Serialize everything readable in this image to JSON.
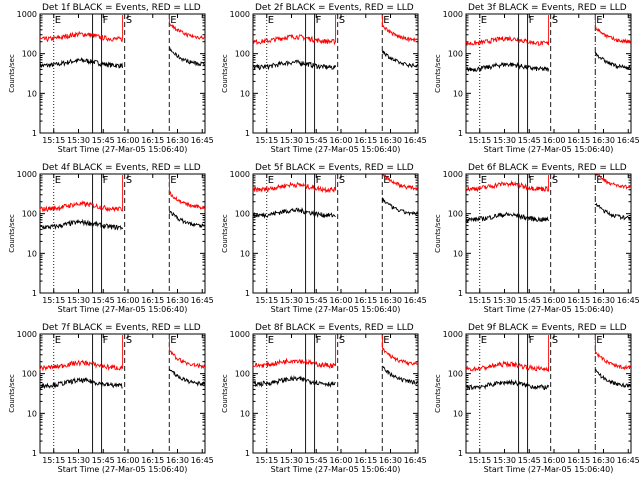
{
  "figure": {
    "x_ticks": [
      "15:15",
      "15:30",
      "15:45",
      "16:00",
      "16:15",
      "16:30",
      "16:45"
    ],
    "y_ticks": [
      "1",
      "10",
      "100",
      "1000"
    ],
    "xlabel": "Start Time (27-Mar-05 15:06:40)",
    "ylabel": "Counts/sec"
  },
  "chart_data": [
    {
      "type": "line",
      "title": "Det 1f BLACK = Events, RED = LLD",
      "xlabel": "Start Time (27-Mar-05 15:06:40)",
      "ylabel": "Counts/sec",
      "y_scale": "log",
      "ylim": [
        1,
        1000
      ],
      "x_ticks": [
        "15:15",
        "15:30",
        "15:45",
        "16:00",
        "16:15",
        "16:30",
        "16:45"
      ],
      "series": [
        {
          "name": "Events",
          "color": "#000000",
          "approx_level": 50
        },
        {
          "name": "LLD",
          "color": "#ff0000",
          "approx_level": 230
        }
      ],
      "markers": [
        {
          "label": "E",
          "time": "15:15",
          "style": "dotted"
        },
        {
          "label": "F",
          "time": "15:44",
          "style": "solid"
        },
        {
          "label": "S",
          "time": "15:58",
          "style": "dashed"
        },
        {
          "label": "E",
          "time": "16:25",
          "style": "dashed"
        }
      ]
    },
    {
      "type": "line",
      "title": "Det 2f BLACK = Events, RED = LLD",
      "xlabel": "Start Time (27-Mar-05 15:06:40)",
      "ylabel": "Counts/sec",
      "y_scale": "log",
      "ylim": [
        1,
        1000
      ],
      "x_ticks": [
        "15:15",
        "15:30",
        "15:45",
        "16:00",
        "16:15",
        "16:30",
        "16:45"
      ],
      "series": [
        {
          "name": "Events",
          "color": "#000000",
          "approx_level": 45
        },
        {
          "name": "LLD",
          "color": "#ff0000",
          "approx_level": 200
        }
      ],
      "markers": [
        {
          "label": "E",
          "time": "15:15",
          "style": "dotted"
        },
        {
          "label": "F",
          "time": "15:44",
          "style": "solid"
        },
        {
          "label": "S",
          "time": "15:58",
          "style": "dashed"
        },
        {
          "label": "E",
          "time": "16:25",
          "style": "dashed"
        }
      ]
    },
    {
      "type": "line",
      "title": "Det 3f BLACK = Events, RED = LLD",
      "xlabel": "Start Time (27-Mar-05 15:06:40)",
      "ylabel": "Counts/sec",
      "y_scale": "log",
      "ylim": [
        1,
        1000
      ],
      "x_ticks": [
        "15:15",
        "15:30",
        "15:45",
        "16:00",
        "16:15",
        "16:30",
        "16:45"
      ],
      "series": [
        {
          "name": "Events",
          "color": "#000000",
          "approx_level": 40
        },
        {
          "name": "LLD",
          "color": "#ff0000",
          "approx_level": 180
        }
      ],
      "markers": [
        {
          "label": "E",
          "time": "15:15",
          "style": "dotted"
        },
        {
          "label": "F",
          "time": "15:44",
          "style": "solid"
        },
        {
          "label": "S",
          "time": "15:58",
          "style": "dashed"
        },
        {
          "label": "E",
          "time": "16:25",
          "style": "dashdot"
        }
      ]
    },
    {
      "type": "line",
      "title": "Det 4f BLACK = Events, RED = LLD",
      "xlabel": "Start Time (27-Mar-05 15:06:40)",
      "ylabel": "Counts/sec",
      "y_scale": "log",
      "ylim": [
        1,
        1000
      ],
      "x_ticks": [
        "15:15",
        "15:30",
        "15:45",
        "16:00",
        "16:15",
        "16:30",
        "16:45"
      ],
      "series": [
        {
          "name": "Events",
          "color": "#000000",
          "approx_level": 45
        },
        {
          "name": "LLD",
          "color": "#ff0000",
          "approx_level": 130
        }
      ],
      "markers": [
        {
          "label": "E",
          "time": "15:15",
          "style": "dotted"
        },
        {
          "label": "F",
          "time": "15:44",
          "style": "solid"
        },
        {
          "label": "S",
          "time": "15:58",
          "style": "dashed"
        },
        {
          "label": "E",
          "time": "16:25",
          "style": "dashed"
        }
      ]
    },
    {
      "type": "line",
      "title": "Det 5f BLACK = Events, RED = LLD",
      "xlabel": "Start Time (27-Mar-05 15:06:40)",
      "ylabel": "Counts/sec",
      "y_scale": "log",
      "ylim": [
        1,
        1000
      ],
      "x_ticks": [
        "15:15",
        "15:30",
        "15:45",
        "16:00",
        "16:15",
        "16:30",
        "16:45"
      ],
      "series": [
        {
          "name": "Events",
          "color": "#000000",
          "approx_level": 90
        },
        {
          "name": "LLD",
          "color": "#ff0000",
          "approx_level": 400
        }
      ],
      "markers": [
        {
          "label": "E",
          "time": "15:15",
          "style": "dotted"
        },
        {
          "label": "F",
          "time": "15:44",
          "style": "solid"
        },
        {
          "label": "S",
          "time": "15:58",
          "style": "dashed"
        },
        {
          "label": "E",
          "time": "16:25",
          "style": "dashed"
        }
      ]
    },
    {
      "type": "line",
      "title": "Det 6f BLACK = Events, RED = LLD",
      "xlabel": "Start Time (27-Mar-05 15:06:40)",
      "ylabel": "Counts/sec",
      "y_scale": "log",
      "ylim": [
        1,
        1000
      ],
      "x_ticks": [
        "15:15",
        "15:30",
        "15:45",
        "16:00",
        "16:15",
        "16:30",
        "16:45"
      ],
      "series": [
        {
          "name": "Events",
          "color": "#000000",
          "approx_level": 70
        },
        {
          "name": "LLD",
          "color": "#ff0000",
          "approx_level": 420
        }
      ],
      "markers": [
        {
          "label": "E",
          "time": "15:15",
          "style": "dotted"
        },
        {
          "label": "F",
          "time": "15:44",
          "style": "solid"
        },
        {
          "label": "S",
          "time": "15:58",
          "style": "dashed"
        },
        {
          "label": "E",
          "time": "16:25",
          "style": "dashdot"
        }
      ]
    },
    {
      "type": "line",
      "title": "Det 7f BLACK = Events, RED = LLD",
      "xlabel": "Start Time (27-Mar-05 15:06:40)",
      "ylabel": "Counts/sec",
      "y_scale": "log",
      "ylim": [
        1,
        1000
      ],
      "x_ticks": [
        "15:15",
        "15:30",
        "15:45",
        "16:00",
        "16:15",
        "16:30",
        "16:45"
      ],
      "series": [
        {
          "name": "Events",
          "color": "#000000",
          "approx_level": 50
        },
        {
          "name": "LLD",
          "color": "#ff0000",
          "approx_level": 140
        }
      ],
      "markers": [
        {
          "label": "E",
          "time": "15:15",
          "style": "dotted"
        },
        {
          "label": "F",
          "time": "15:44",
          "style": "solid"
        },
        {
          "label": "S",
          "time": "15:58",
          "style": "dashed"
        },
        {
          "label": "E",
          "time": "16:25",
          "style": "dashed"
        }
      ]
    },
    {
      "type": "line",
      "title": "Det 8f BLACK = Events, RED = LLD",
      "xlabel": "Start Time (27-Mar-05 15:06:40)",
      "ylabel": "Counts/sec",
      "y_scale": "log",
      "ylim": [
        1,
        1000
      ],
      "x_ticks": [
        "15:15",
        "15:30",
        "15:45",
        "16:00",
        "16:15",
        "16:30",
        "16:45"
      ],
      "series": [
        {
          "name": "Events",
          "color": "#000000",
          "approx_level": 55
        },
        {
          "name": "LLD",
          "color": "#ff0000",
          "approx_level": 160
        }
      ],
      "markers": [
        {
          "label": "E",
          "time": "15:15",
          "style": "dotted"
        },
        {
          "label": "F",
          "time": "15:44",
          "style": "solid"
        },
        {
          "label": "S",
          "time": "15:58",
          "style": "dashed"
        },
        {
          "label": "E",
          "time": "16:25",
          "style": "dashed"
        }
      ]
    },
    {
      "type": "line",
      "title": "Det 9f BLACK = Events, RED = LLD",
      "xlabel": "Start Time (27-Mar-05 15:06:40)",
      "ylabel": "Counts/sec",
      "y_scale": "log",
      "ylim": [
        1,
        1000
      ],
      "x_ticks": [
        "15:15",
        "15:30",
        "15:45",
        "16:00",
        "16:15",
        "16:30",
        "16:45"
      ],
      "series": [
        {
          "name": "Events",
          "color": "#000000",
          "approx_level": 45
        },
        {
          "name": "LLD",
          "color": "#ff0000",
          "approx_level": 130
        }
      ],
      "markers": [
        {
          "label": "E",
          "time": "15:15",
          "style": "dotted"
        },
        {
          "label": "F",
          "time": "15:44",
          "style": "solid"
        },
        {
          "label": "S",
          "time": "15:58",
          "style": "dashed"
        },
        {
          "label": "E",
          "time": "16:25",
          "style": "dashdot"
        }
      ]
    }
  ]
}
